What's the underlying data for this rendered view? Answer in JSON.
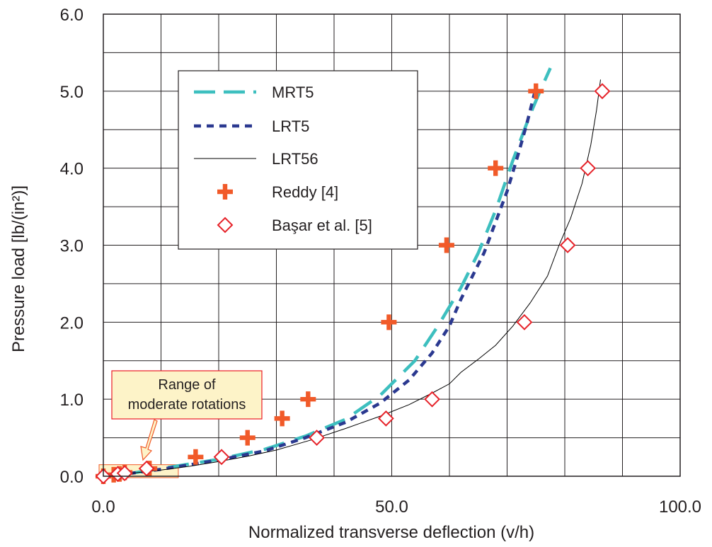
{
  "chart_data": {
    "type": "line",
    "xlabel": "Normalized transverse deflection (v/h)",
    "ylabel": "Pressure load [lb/(in²)]",
    "xlim": [
      0,
      100
    ],
    "ylim": [
      0,
      6
    ],
    "x_ticks": [
      0,
      50,
      100
    ],
    "x_tick_labels": [
      "0.0",
      "50.0",
      "100.0"
    ],
    "x_minor_step": 10,
    "y_ticks": [
      0,
      1,
      2,
      3,
      4,
      5,
      6
    ],
    "y_tick_labels": [
      "0.0",
      "1.0",
      "2.0",
      "3.0",
      "4.0",
      "5.0",
      "6.0"
    ],
    "y_minor_step": 0.5,
    "grid": true,
    "legend_position": "top-left (inside plot)",
    "series": [
      {
        "name": "MRT5",
        "style": "long-dash",
        "color": "#3dbfbf",
        "x": [
          0,
          5,
          10,
          15,
          20,
          28,
          35,
          42,
          48,
          54,
          58,
          62,
          65,
          68,
          71,
          74,
          76,
          77.5
        ],
        "y": [
          0,
          0.04,
          0.1,
          0.16,
          0.22,
          0.35,
          0.52,
          0.74,
          1.05,
          1.5,
          1.95,
          2.45,
          2.9,
          3.45,
          4.1,
          4.7,
          5.05,
          5.3
        ]
      },
      {
        "name": "LRT5",
        "style": "short-dash",
        "color": "#2b3990",
        "x": [
          0,
          5,
          10,
          15,
          20,
          28,
          35,
          42,
          48,
          53,
          57,
          60,
          62,
          64,
          66,
          68,
          70,
          72,
          73.5,
          74.5,
          75
        ],
        "y": [
          0,
          0.04,
          0.09,
          0.15,
          0.21,
          0.33,
          0.5,
          0.7,
          0.95,
          1.25,
          1.6,
          1.95,
          2.3,
          2.6,
          2.9,
          3.3,
          3.7,
          4.2,
          4.6,
          4.9,
          5.05
        ]
      },
      {
        "name": "LRT56",
        "style": "thin-solid",
        "color": "#000000",
        "x": [
          0,
          5,
          10,
          15,
          20,
          25,
          30,
          36,
          42,
          48,
          53,
          57,
          60,
          62,
          65,
          68,
          71,
          74,
          77,
          79,
          81,
          83,
          84.5,
          85.5,
          86.2
        ],
        "y": [
          0,
          0.04,
          0.08,
          0.13,
          0.19,
          0.26,
          0.34,
          0.47,
          0.62,
          0.78,
          0.93,
          1.08,
          1.2,
          1.35,
          1.52,
          1.7,
          1.95,
          2.25,
          2.6,
          3.0,
          3.35,
          3.8,
          4.3,
          4.75,
          5.15
        ]
      },
      {
        "name": "Reddy [4]",
        "marker": "plus",
        "color": "#f15a29",
        "x": [
          0,
          1.8,
          2.8,
          3.7,
          8.0,
          16.0,
          25.0,
          31.0,
          35.5,
          49.5,
          59.5,
          68.0,
          75.0
        ],
        "y": [
          0,
          0.02,
          0.03,
          0.05,
          0.1,
          0.25,
          0.5,
          0.75,
          1.0,
          2.0,
          3.0,
          4.0,
          5.0
        ]
      },
      {
        "name": "Başar et al. [5]",
        "marker": "open-diamond",
        "color": "#e6232a",
        "x": [
          0,
          2.5,
          3.7,
          7.5,
          20.5,
          37.0,
          49.0,
          57.0,
          73.0,
          80.5,
          84.0,
          86.5
        ],
        "y": [
          0,
          0.03,
          0.04,
          0.1,
          0.25,
          0.5,
          0.75,
          1.0,
          2.0,
          3.0,
          4.0,
          5.0
        ]
      }
    ],
    "annotation": {
      "text_lines": [
        "Range of",
        "moderate rotations"
      ],
      "highlight_x": [
        0,
        13
      ],
      "highlight_y": [
        0,
        0.15
      ]
    }
  }
}
